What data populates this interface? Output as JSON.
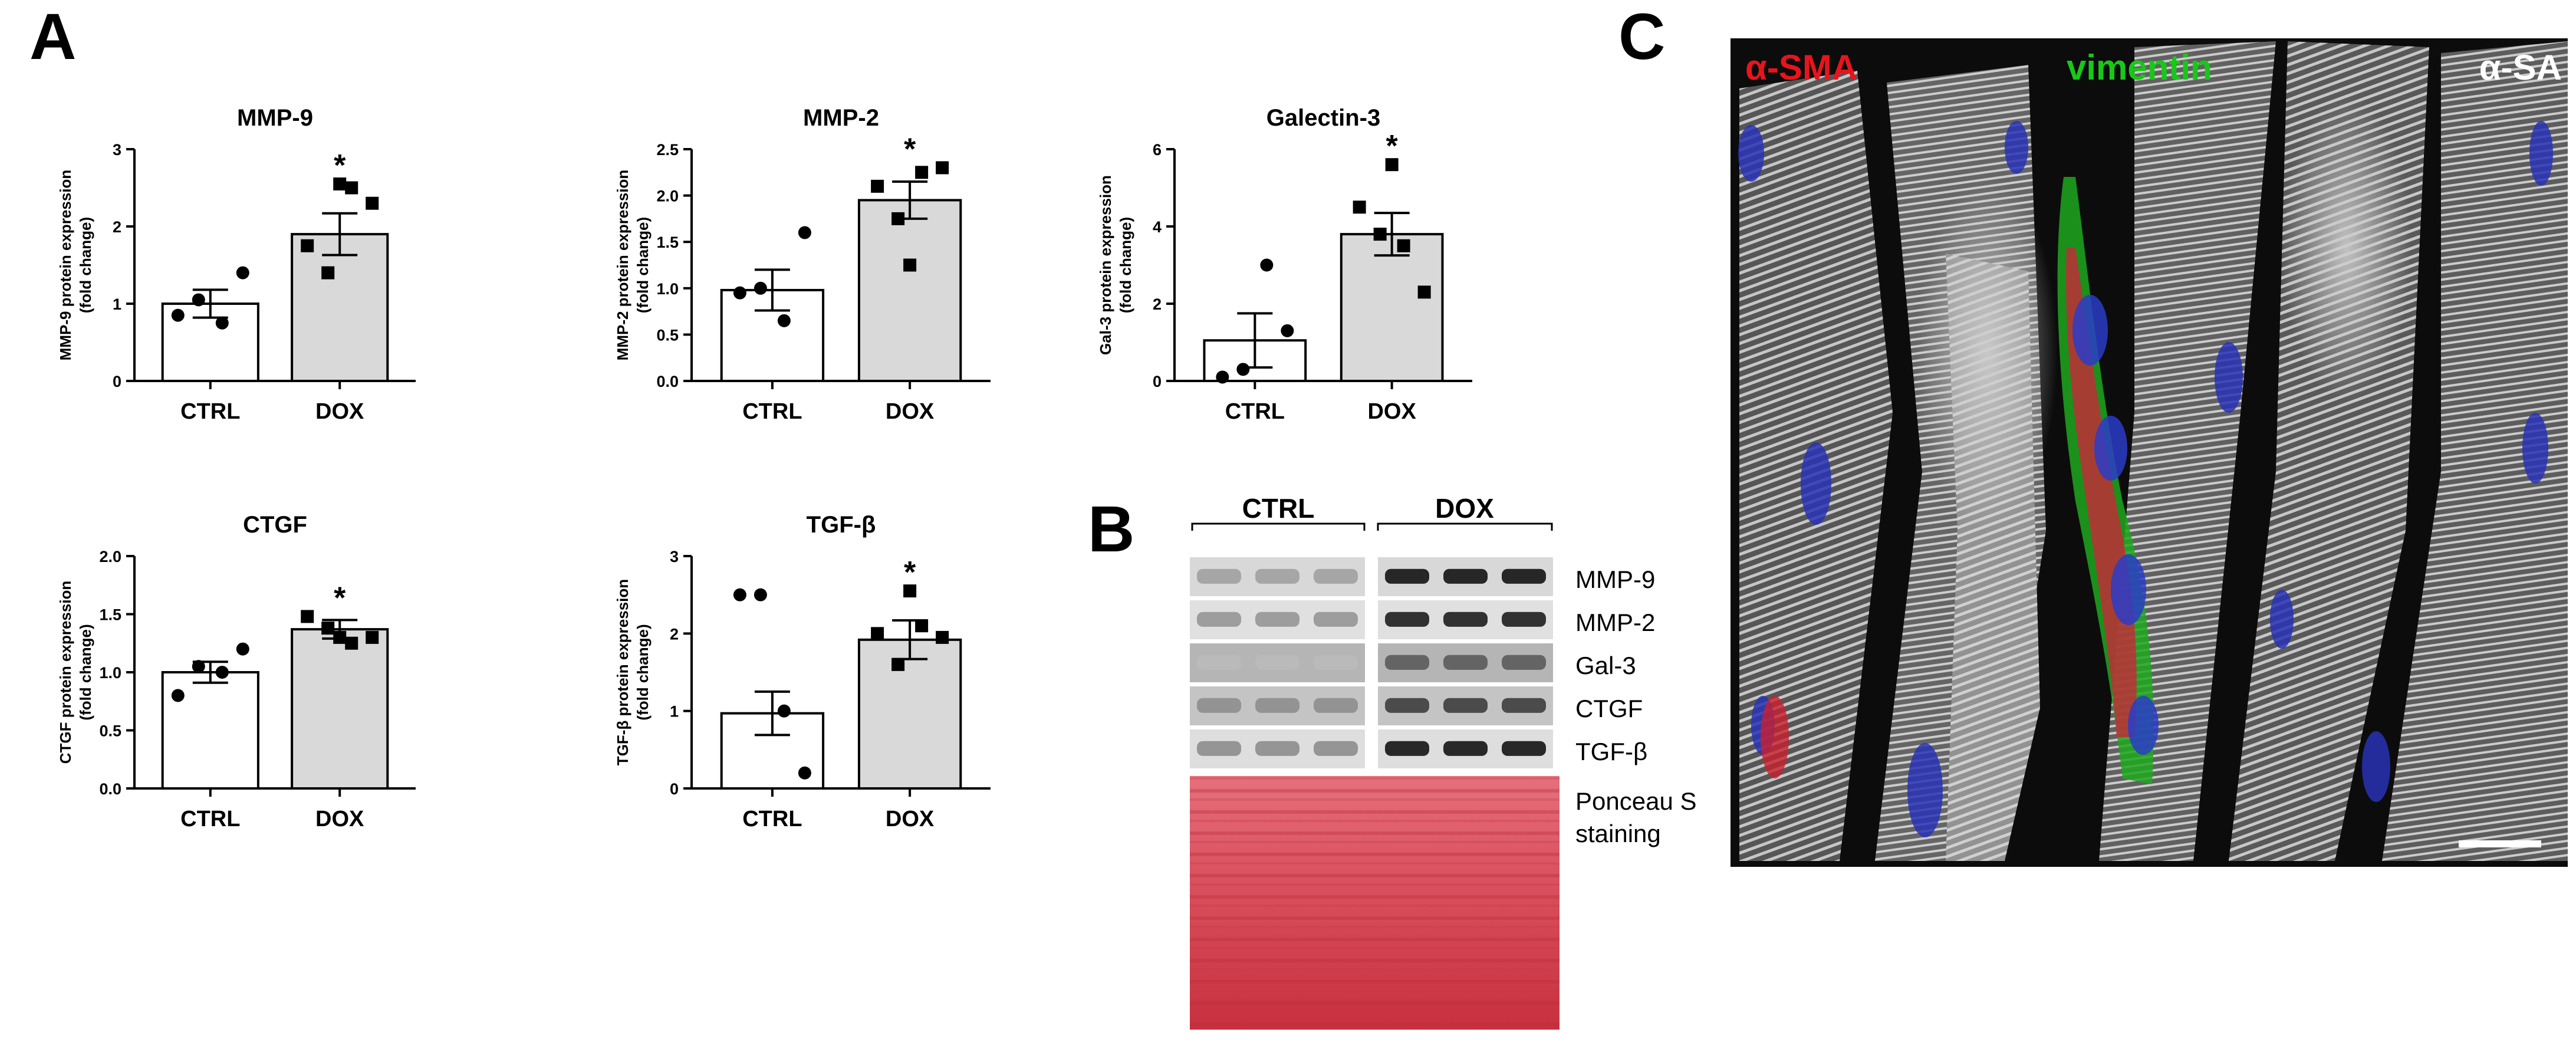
{
  "panels": {
    "a": "A",
    "b": "B",
    "c": "C"
  },
  "chart_data": [
    {
      "type": "bar",
      "title": "MMP-9",
      "ylabel": [
        "MMP-9 protein expression",
        "(fold change)"
      ],
      "categories": [
        "CTRL",
        "DOX"
      ],
      "values": [
        1.0,
        1.9
      ],
      "errors": [
        0.18,
        0.27
      ],
      "points": [
        [
          0.85,
          1.05,
          0.75,
          1.4
        ],
        [
          1.75,
          1.4,
          2.5,
          2.3,
          2.55
        ]
      ],
      "significance": [
        "",
        "*"
      ],
      "ylim": [
        0,
        3
      ],
      "yticks": [
        "0",
        "1",
        "2",
        "3"
      ],
      "bar_colors": [
        "#ffffff",
        "#d9d9d9"
      ]
    },
    {
      "type": "bar",
      "title": "MMP-2",
      "ylabel": [
        "MMP-2 protein expression",
        "(fold change)"
      ],
      "categories": [
        "CTRL",
        "DOX"
      ],
      "values": [
        0.98,
        1.95
      ],
      "errors": [
        0.22,
        0.2
      ],
      "points": [
        [
          0.95,
          1.0,
          0.65,
          1.6
        ],
        [
          2.1,
          1.75,
          2.25,
          2.3,
          1.25
        ]
      ],
      "significance": [
        "",
        "*"
      ],
      "ylim": [
        0,
        2.5
      ],
      "yticks": [
        "0.0",
        "0.5",
        "1.0",
        "1.5",
        "2.0",
        "2.5"
      ],
      "bar_colors": [
        "#ffffff",
        "#d9d9d9"
      ]
    },
    {
      "type": "bar",
      "title": "Galectin-3",
      "ylabel": [
        "Gal-3 protein expression",
        "(fold change)"
      ],
      "categories": [
        "CTRL",
        "DOX"
      ],
      "values": [
        1.05,
        3.8
      ],
      "errors": [
        0.7,
        0.55
      ],
      "points": [
        [
          0.1,
          0.3,
          3.0,
          1.3
        ],
        [
          4.5,
          3.8,
          3.5,
          2.3,
          5.6
        ]
      ],
      "significance": [
        "",
        "*"
      ],
      "ylim": [
        0,
        6
      ],
      "yticks": [
        "0",
        "2",
        "4",
        "6"
      ],
      "bar_colors": [
        "#ffffff",
        "#d9d9d9"
      ]
    },
    {
      "type": "bar",
      "title": "CTGF",
      "ylabel": [
        "CTGF protein expression",
        "(fold change)"
      ],
      "categories": [
        "CTRL",
        "DOX"
      ],
      "values": [
        1.0,
        1.37
      ],
      "errors": [
        0.09,
        0.08
      ],
      "points": [
        [
          0.8,
          1.05,
          1.0,
          1.2
        ],
        [
          1.48,
          1.38,
          1.25,
          1.3,
          1.3
        ]
      ],
      "significance": [
        "",
        "*"
      ],
      "ylim": [
        0,
        2.0
      ],
      "yticks": [
        "0.0",
        "0.5",
        "1.0",
        "1.5",
        "2.0"
      ],
      "bar_colors": [
        "#ffffff",
        "#d9d9d9"
      ]
    },
    {
      "type": "bar",
      "title": "TGF-β",
      "ylabel": [
        "TGF-β protein expression",
        "(fold change)"
      ],
      "categories": [
        "CTRL",
        "DOX"
      ],
      "values": [
        0.97,
        1.92
      ],
      "errors": [
        0.28,
        0.25
      ],
      "points": [
        [
          2.5,
          2.5,
          1.0,
          0.2
        ],
        [
          2.0,
          1.6,
          2.1,
          1.95,
          2.55
        ]
      ],
      "significance": [
        "",
        "*"
      ],
      "ylim": [
        0,
        3
      ],
      "yticks": [
        "0",
        "1",
        "2",
        "3"
      ],
      "bar_colors": [
        "#ffffff",
        "#d9d9d9"
      ]
    }
  ],
  "western_blot": {
    "groups": [
      "CTRL",
      "DOX"
    ],
    "rows": [
      "MMP-9",
      "MMP-2",
      "Gal-3",
      "CTGF",
      "TGF-β"
    ],
    "ponceau_lines": [
      "Ponceau S",
      "staining"
    ]
  },
  "microscopy": {
    "labels": [
      {
        "text": "α-SMA",
        "color": "#e8141c"
      },
      {
        "text": "vimentin",
        "color": "#18c818"
      },
      {
        "text": "α-SA",
        "color": "#ffffff"
      }
    ]
  }
}
